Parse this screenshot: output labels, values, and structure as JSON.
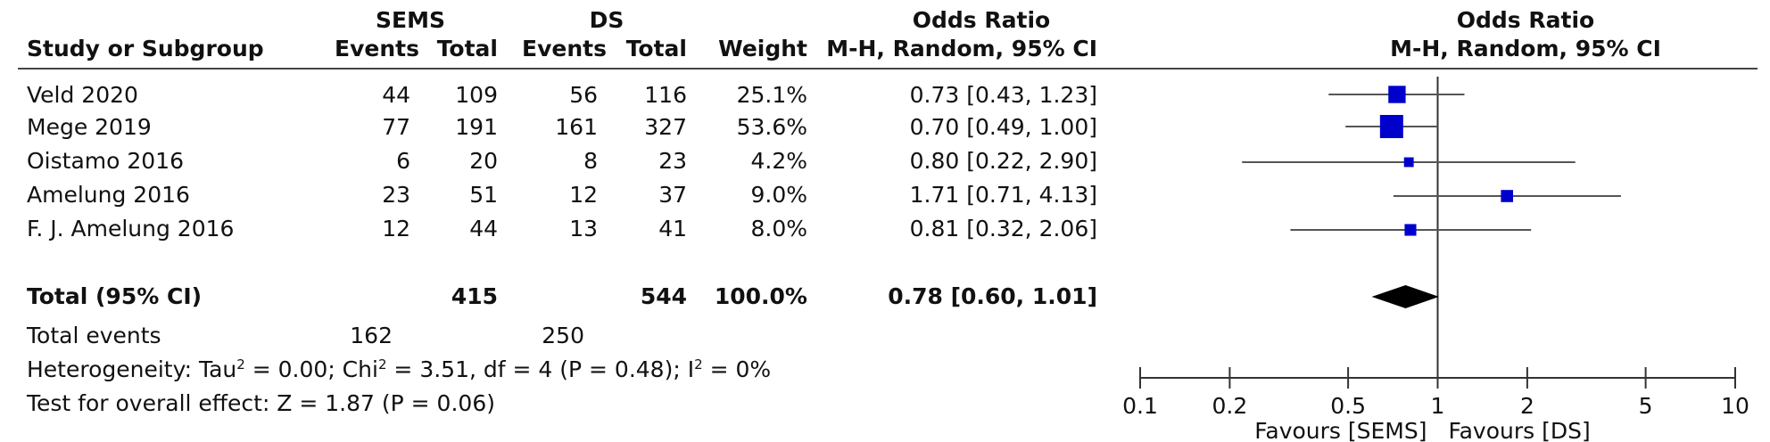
{
  "header": {
    "group1": "SEMS",
    "group2": "DS",
    "col_study": "Study or Subgroup",
    "col_events": "Events",
    "col_total": "Total",
    "col_weight": "Weight",
    "table_or_title": "Odds Ratio",
    "table_or_method": "M-H, Random, 95% CI",
    "plot_or_title": "Odds Ratio",
    "plot_or_method": "M-H, Random, 95% CI"
  },
  "rows": [
    {
      "study": "Veld 2020",
      "e1": "44",
      "t1": "109",
      "e2": "56",
      "t2": "116",
      "weight": "25.1%",
      "ci_text": "0.73 [0.43, 1.23]"
    },
    {
      "study": "Mege 2019",
      "e1": "77",
      "t1": "191",
      "e2": "161",
      "t2": "327",
      "weight": "53.6%",
      "ci_text": "0.70 [0.49, 1.00]"
    },
    {
      "study": "Oistamo 2016",
      "e1": "6",
      "t1": "20",
      "e2": "8",
      "t2": "23",
      "weight": "4.2%",
      "ci_text": "0.80 [0.22, 2.90]"
    },
    {
      "study": "Amelung 2016",
      "e1": "23",
      "t1": "51",
      "e2": "12",
      "t2": "37",
      "weight": "9.0%",
      "ci_text": "1.71 [0.71, 4.13]"
    },
    {
      "study": "F. J. Amelung 2016",
      "e1": "12",
      "t1": "44",
      "e2": "13",
      "t2": "41",
      "weight": "8.0%",
      "ci_text": "0.81 [0.32, 2.06]"
    }
  ],
  "total": {
    "label": "Total (95% CI)",
    "t1": "415",
    "t2": "544",
    "weight": "100.0%",
    "ci_text": "0.78 [0.60, 1.01]"
  },
  "total_events": {
    "label": "Total events",
    "e1": "162",
    "e2": "250"
  },
  "heterogeneity": {
    "prefix": "Heterogeneity: Tau",
    "sup1": "2",
    "mid1": " = 0.00; Chi",
    "sup2": "2",
    "mid2": " = 3.51, df = 4 (P = 0.48); I",
    "sup3": "2",
    "suffix": " = 0%"
  },
  "overall_effect": "Test for overall effect: Z = 1.87 (P = 0.06)",
  "chart_data": {
    "type": "forest",
    "x_scale": "log",
    "xlim": [
      0.1,
      10
    ],
    "ticks": [
      {
        "value": 0.1,
        "label": "0.1"
      },
      {
        "value": 0.2,
        "label": "0.2"
      },
      {
        "value": 0.5,
        "label": "0.5"
      },
      {
        "value": 1,
        "label": "1"
      },
      {
        "value": 2,
        "label": "2"
      },
      {
        "value": 5,
        "label": "5"
      },
      {
        "value": 10,
        "label": "10"
      }
    ],
    "favours_left": "Favours [SEMS]",
    "favours_right": "Favours [DS]",
    "studies": [
      {
        "or": 0.73,
        "lo": 0.43,
        "hi": 1.23,
        "weight": 25.1
      },
      {
        "or": 0.7,
        "lo": 0.49,
        "hi": 1.0,
        "weight": 53.6
      },
      {
        "or": 0.8,
        "lo": 0.22,
        "hi": 2.9,
        "weight": 4.2
      },
      {
        "or": 1.71,
        "lo": 0.71,
        "hi": 4.13,
        "weight": 9.0
      },
      {
        "or": 0.81,
        "lo": 0.32,
        "hi": 2.06,
        "weight": 8.0
      }
    ],
    "pooled": {
      "or": 0.78,
      "lo": 0.6,
      "hi": 1.01
    },
    "colors": {
      "marker": "#0000cc",
      "line": "#555555",
      "diamond": "#000000"
    }
  }
}
